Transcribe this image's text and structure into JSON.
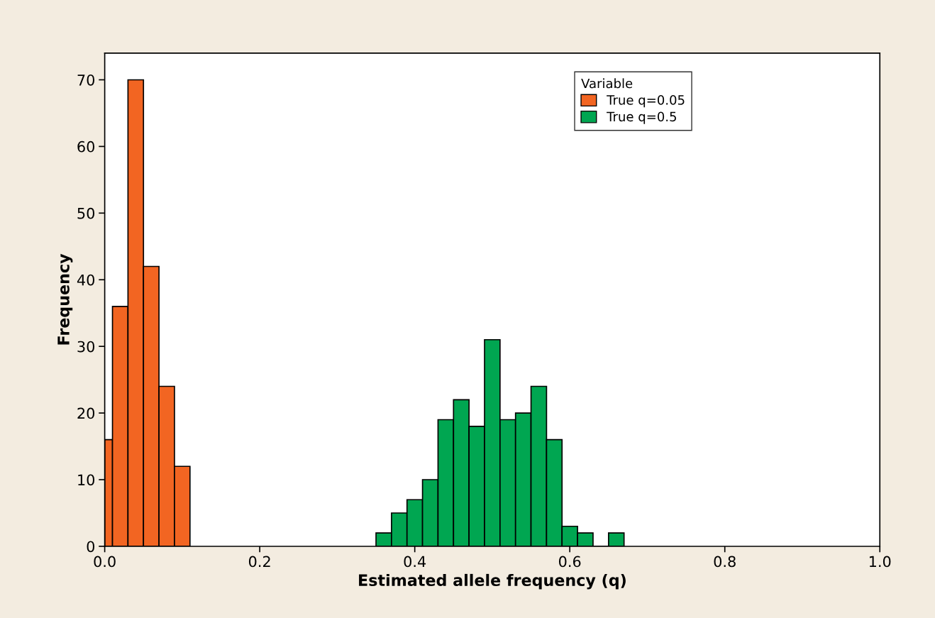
{
  "chart_data": {
    "type": "histogram",
    "xlabel": "Estimated allele frequency (q)",
    "ylabel": "Frequency",
    "legend_title": "Variable",
    "legend": "top right",
    "bins": [
      0,
      0.01,
      0.03,
      0.05,
      0.07,
      0.09,
      0.11,
      0.35,
      0.37,
      0.39,
      0.41,
      0.43,
      0.45,
      0.47,
      0.49,
      0.51,
      0.53,
      0.55,
      0.57,
      0.59,
      0.61,
      0.63,
      0.65,
      0.67
    ],
    "series": [
      {
        "name": "True q=0.05",
        "color": "#f26522",
        "values": [
          16,
          36,
          70,
          42,
          24,
          12,
          null,
          null,
          null,
          null,
          null,
          null,
          null,
          null,
          null,
          null,
          null,
          null,
          null,
          null,
          null,
          null,
          null
        ]
      },
      {
        "name": "True q=0.5",
        "color": "#00a651",
        "values": [
          null,
          null,
          null,
          null,
          null,
          null,
          null,
          2,
          5,
          7,
          10,
          19,
          22,
          18,
          31,
          19,
          20,
          24,
          16,
          3,
          2,
          0,
          2
        ]
      }
    ],
    "xlim": [
      0,
      1
    ],
    "xticks": [
      {
        "value": 0,
        "label": "0.0"
      },
      0.2,
      0.4,
      0.6,
      0.8,
      {
        "value": 1,
        "label": "1.0"
      }
    ],
    "ylim": [
      0,
      74
    ],
    "yticks": [
      0,
      10,
      20,
      30,
      40,
      50,
      60,
      70
    ],
    "grid": false
  }
}
